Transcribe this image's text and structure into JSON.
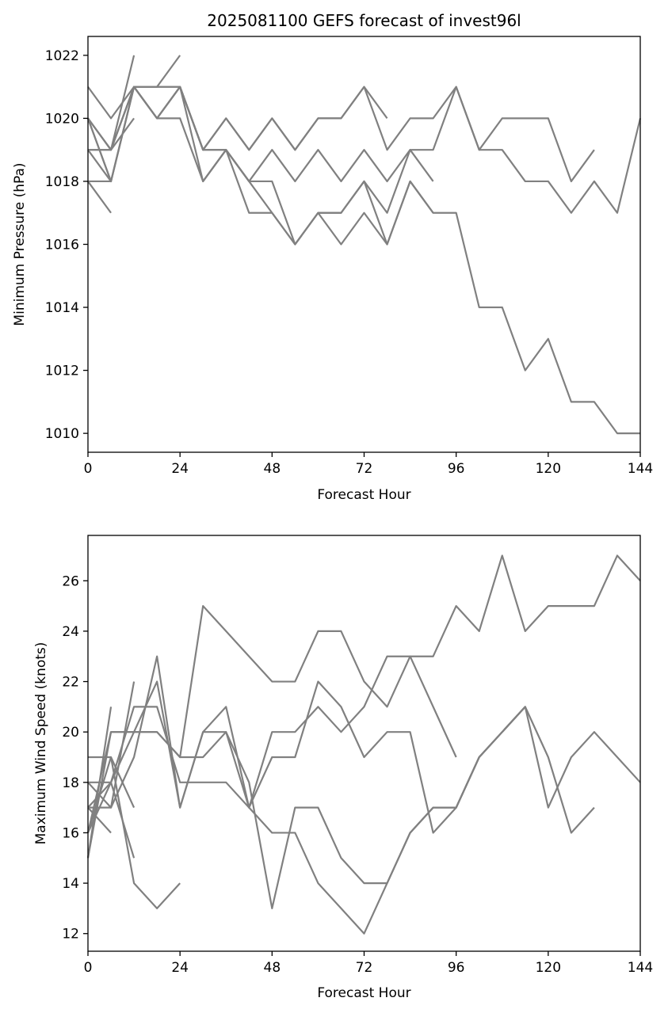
{
  "figure_title": "2025081100 GEFS forecast of invest96l",
  "colors": {
    "series": "#808080",
    "axes": "#000000",
    "background": "#ffffff"
  },
  "chart_data": [
    {
      "type": "line",
      "title": "2025081100 GEFS forecast of invest96l",
      "xlabel": "Forecast Hour",
      "ylabel": "Minimum Pressure (hPa)",
      "xlim": [
        0,
        144
      ],
      "ylim": [
        1009.4,
        1022.6
      ],
      "xticks": [
        0,
        24,
        48,
        72,
        96,
        120,
        144
      ],
      "yticks": [
        1010,
        1012,
        1014,
        1016,
        1018,
        1020,
        1022
      ],
      "grid": false,
      "series": [
        {
          "x": [
            0,
            6,
            12,
            18,
            24,
            30,
            36,
            42,
            48,
            54,
            60,
            66,
            72,
            78,
            84,
            90,
            96,
            102,
            108,
            114,
            120,
            126,
            132,
            138,
            144
          ],
          "y": [
            1020,
            1019,
            1021,
            1020,
            1021,
            1019,
            1019,
            1017,
            1017,
            1016,
            1017,
            1017,
            1018,
            1017,
            1019,
            1019,
            1021,
            1019,
            1019,
            1018,
            1018,
            1017,
            1018,
            1017,
            1020
          ]
        },
        {
          "x": [
            0,
            6,
            12,
            18,
            24,
            30,
            36,
            42,
            48,
            54,
            60,
            66,
            72,
            78,
            84,
            90
          ],
          "y": [
            1019,
            1019,
            1021,
            1021,
            1021,
            1018,
            1019,
            1018,
            1018,
            1016,
            1017,
            1016,
            1017,
            1016,
            1018,
            1017
          ]
        },
        {
          "x": [
            0,
            6,
            12,
            18,
            24,
            30,
            36,
            42,
            48,
            54,
            60,
            66,
            72,
            78,
            84,
            90,
            96,
            102,
            108,
            114,
            120,
            126,
            132
          ],
          "y": [
            1021,
            1020,
            1021,
            1021,
            1021,
            1019,
            1020,
            1019,
            1020,
            1019,
            1020,
            1020,
            1021,
            1019,
            1020,
            1020,
            1021,
            1019,
            1020,
            1020,
            1020,
            1018,
            1019
          ]
        },
        {
          "x": [
            0,
            6,
            12,
            18,
            24,
            30,
            36,
            42,
            48,
            54,
            60,
            66,
            72,
            78,
            84,
            90
          ],
          "y": [
            1019,
            1018,
            1021,
            1020,
            1020,
            1018,
            1019,
            1018,
            1019,
            1018,
            1019,
            1018,
            1019,
            1018,
            1019,
            1018
          ]
        },
        {
          "x": [
            0,
            6,
            12,
            18,
            24,
            30,
            36,
            42,
            48,
            54,
            60,
            66,
            72,
            78
          ],
          "y": [
            1020,
            1019,
            1021,
            1020,
            1021,
            1019,
            1020,
            1019,
            1020,
            1019,
            1020,
            1020,
            1021,
            1020
          ]
        },
        {
          "x": [
            0,
            6,
            12,
            18,
            24,
            30,
            36,
            42,
            48,
            54,
            60,
            66,
            72,
            78,
            84,
            90,
            96,
            102,
            108,
            114,
            120,
            126,
            132,
            138,
            144
          ],
          "y": [
            1018,
            1018,
            1021,
            1020,
            1021,
            1019,
            1019,
            1018,
            1017,
            1016,
            1017,
            1017,
            1018,
            1016,
            1018,
            1017,
            1017,
            1014,
            1014,
            1012,
            1013,
            1011,
            1011,
            1010,
            1010
          ]
        },
        {
          "x": [
            0,
            6,
            12,
            18,
            24
          ],
          "y": [
            1020,
            1018,
            1021,
            1021,
            1022
          ]
        },
        {
          "x": [
            0,
            6,
            12
          ],
          "y": [
            1020,
            1019,
            1022
          ]
        },
        {
          "x": [
            0,
            6,
            12
          ],
          "y": [
            1019,
            1019,
            1020
          ]
        },
        {
          "x": [
            0,
            6
          ],
          "y": [
            1018,
            1017
          ]
        },
        {
          "x": [
            0,
            6
          ],
          "y": [
            1020,
            1018
          ]
        }
      ]
    },
    {
      "type": "line",
      "title": "",
      "xlabel": "Forecast Hour",
      "ylabel": "Maximum Wind Speed (knots)",
      "xlim": [
        0,
        144
      ],
      "ylim": [
        11.3,
        27.8
      ],
      "xticks": [
        0,
        24,
        48,
        72,
        96,
        120,
        144
      ],
      "yticks": [
        12,
        14,
        16,
        18,
        20,
        22,
        24,
        26
      ],
      "grid": false,
      "series": [
        {
          "x": [
            0,
            6,
            12,
            18,
            24,
            30,
            36,
            42,
            48,
            54,
            60,
            66,
            72,
            78,
            84,
            90,
            96,
            102,
            108,
            114,
            120,
            126,
            132,
            138,
            144
          ],
          "y": [
            15,
            20,
            20,
            20,
            19,
            25,
            24,
            23,
            22,
            22,
            24,
            24,
            22,
            21,
            23,
            23,
            25,
            24,
            27,
            24,
            25,
            25,
            25,
            27,
            26
          ]
        },
        {
          "x": [
            0,
            6,
            12,
            18,
            24,
            30,
            36,
            42,
            48,
            54,
            60,
            66,
            72,
            78,
            84,
            90,
            96,
            102,
            108,
            114,
            120,
            126,
            132,
            138,
            144
          ],
          "y": [
            17,
            18,
            20,
            22,
            17,
            20,
            21,
            17,
            19,
            19,
            22,
            21,
            19,
            20,
            20,
            16,
            17,
            19,
            20,
            21,
            17,
            19,
            20,
            19,
            18
          ]
        },
        {
          "x": [
            0,
            6,
            12,
            18,
            24,
            30,
            36,
            42,
            48,
            54,
            60,
            66,
            72,
            78,
            84,
            90,
            96,
            102,
            108,
            114,
            120,
            126,
            132
          ],
          "y": [
            16,
            18,
            21,
            21,
            18,
            18,
            18,
            17,
            16,
            16,
            14,
            13,
            12,
            14,
            16,
            17,
            17,
            19,
            20,
            21,
            19,
            16,
            17
          ]
        },
        {
          "x": [
            0,
            6,
            12,
            18,
            24,
            30,
            36,
            42,
            48,
            54,
            60,
            66,
            72,
            78,
            84,
            90,
            96,
            102,
            108,
            114
          ],
          "y": [
            18,
            17,
            19,
            23,
            17,
            20,
            20,
            18,
            13,
            17,
            17,
            15,
            14,
            14,
            16,
            17,
            17,
            19,
            20,
            21
          ]
        },
        {
          "x": [
            0,
            6,
            12,
            18,
            24,
            30,
            36,
            42,
            48,
            54,
            60,
            66,
            72,
            78,
            84,
            90,
            96
          ],
          "y": [
            16,
            20,
            20,
            20,
            19,
            19,
            20,
            17,
            20,
            20,
            21,
            20,
            21,
            23,
            23,
            21,
            19
          ]
        },
        {
          "x": [
            0,
            6,
            12,
            18,
            24
          ],
          "y": [
            19,
            19,
            14,
            13,
            14
          ]
        },
        {
          "x": [
            0,
            6,
            12
          ],
          "y": [
            18,
            18,
            15
          ]
        },
        {
          "x": [
            0,
            6,
            12
          ],
          "y": [
            17,
            17,
            22
          ]
        },
        {
          "x": [
            0,
            6,
            12
          ],
          "y": [
            16,
            19,
            17
          ]
        },
        {
          "x": [
            0,
            6
          ],
          "y": [
            15,
            21
          ]
        },
        {
          "x": [
            0,
            6
          ],
          "y": [
            17,
            16
          ]
        }
      ]
    }
  ]
}
